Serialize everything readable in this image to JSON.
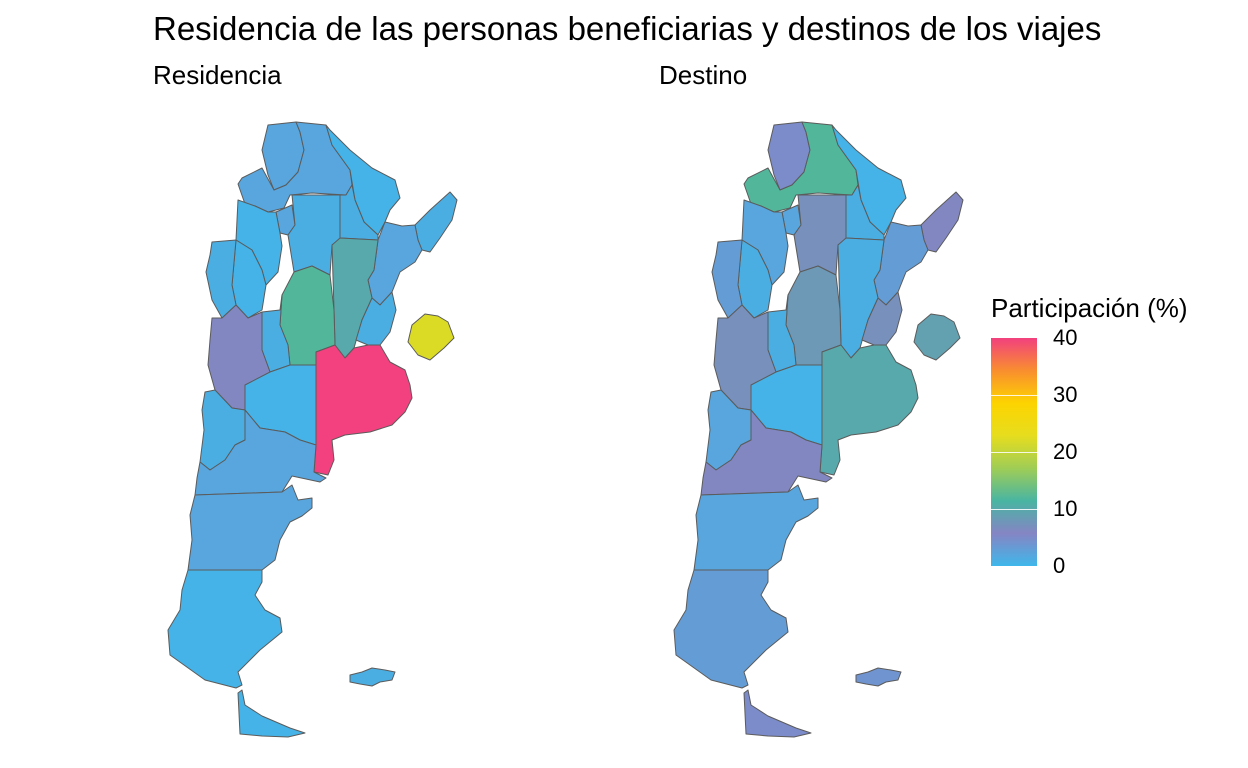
{
  "title": "Residencia de las personas beneficiarias y destinos de los viajes",
  "panels": [
    {
      "id": "residencia",
      "label": "Residencia"
    },
    {
      "id": "destino",
      "label": "Destino"
    }
  ],
  "legend": {
    "title": "Participación (%)",
    "min": 0,
    "max": 40,
    "ticks": [
      "0",
      "10",
      "20",
      "30",
      "40"
    ],
    "gradient": [
      "#3fb7ea",
      "#8585c4",
      "#49b5a2",
      "#9fcd56",
      "#e6dd1e",
      "#fdd400",
      "#f98e2f",
      "#f2417e"
    ]
  },
  "chart_data": {
    "type": "choropleth",
    "value_label": "Participación (%)",
    "scale_range": [
      0,
      40
    ],
    "regions": [
      "Jujuy",
      "Salta",
      "Formosa",
      "Misiones",
      "Tucumán",
      "Catamarca",
      "Santiago del Estero",
      "Chaco",
      "Corrientes",
      "La Rioja",
      "Santa Fe",
      "San Juan",
      "Córdoba",
      "Entre Ríos",
      "San Luis",
      "Mendoza",
      "Buenos Aires",
      "CABA",
      "La Pampa",
      "Neuquén",
      "Río Negro",
      "Chubut",
      "Santa Cruz",
      "Tierra del Fuego",
      "Islas Malvinas"
    ],
    "series": [
      {
        "name": "Residencia",
        "values": [
          2,
          2,
          0.5,
          1,
          2,
          0.5,
          1,
          1,
          2,
          0.5,
          10,
          1,
          12,
          1,
          1,
          6,
          40,
          22,
          0.5,
          1,
          2,
          2,
          0.5,
          0.5,
          1
        ]
      },
      {
        "name": "Destino",
        "values": [
          5,
          12,
          0.5,
          6,
          2,
          2,
          7,
          1,
          3,
          1,
          1,
          3,
          8,
          7,
          1,
          7,
          10,
          9,
          0.5,
          2,
          6,
          2,
          3,
          5,
          4
        ]
      }
    ]
  }
}
